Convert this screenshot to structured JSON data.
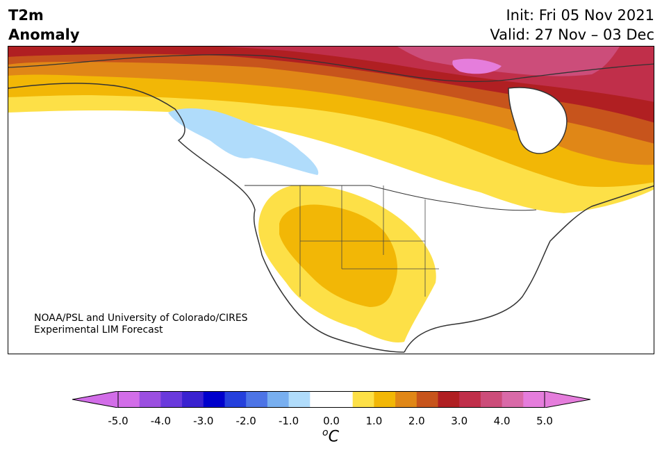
{
  "header": {
    "title_line1": "T2m",
    "title_line2": "Anomaly",
    "init": "Init: Fri 05 Nov 2021",
    "valid": "Valid: 27 Nov – 03 Dec"
  },
  "credit": {
    "line1": "NOAA/PSL and University of Colorado/CIRES",
    "line2": "Experimental LIM Forecast"
  },
  "colorbar": {
    "units_base": "C",
    "units_sup": "o",
    "ticks": [
      "-5.0",
      "-4.0",
      "-3.0",
      "-2.0",
      "-1.0",
      "0.0",
      "1.0",
      "2.0",
      "3.0",
      "4.0",
      "5.0"
    ],
    "bins": [
      -5,
      -4.5,
      -4,
      -3.5,
      -3,
      -2.5,
      -2,
      -1.5,
      -1,
      -0.5,
      0.5,
      1,
      1.5,
      2,
      2.5,
      3,
      3.5,
      4,
      4.5,
      5
    ],
    "colors": [
      "#d26de8",
      "#9b4fe0",
      "#6a3adc",
      "#3a22d0",
      "#0000cc",
      "#2540dc",
      "#4d74e6",
      "#78aff0",
      "#b0dcfb",
      "#ffffff",
      "#fde047",
      "#f2b706",
      "#e08717",
      "#c7541c",
      "#b01f22",
      "#c02f4a",
      "#cc4d7a",
      "#d96aa8",
      "#e57ddc"
    ],
    "under_color": "#d26de8",
    "over_color": "#e57ddc"
  }
}
